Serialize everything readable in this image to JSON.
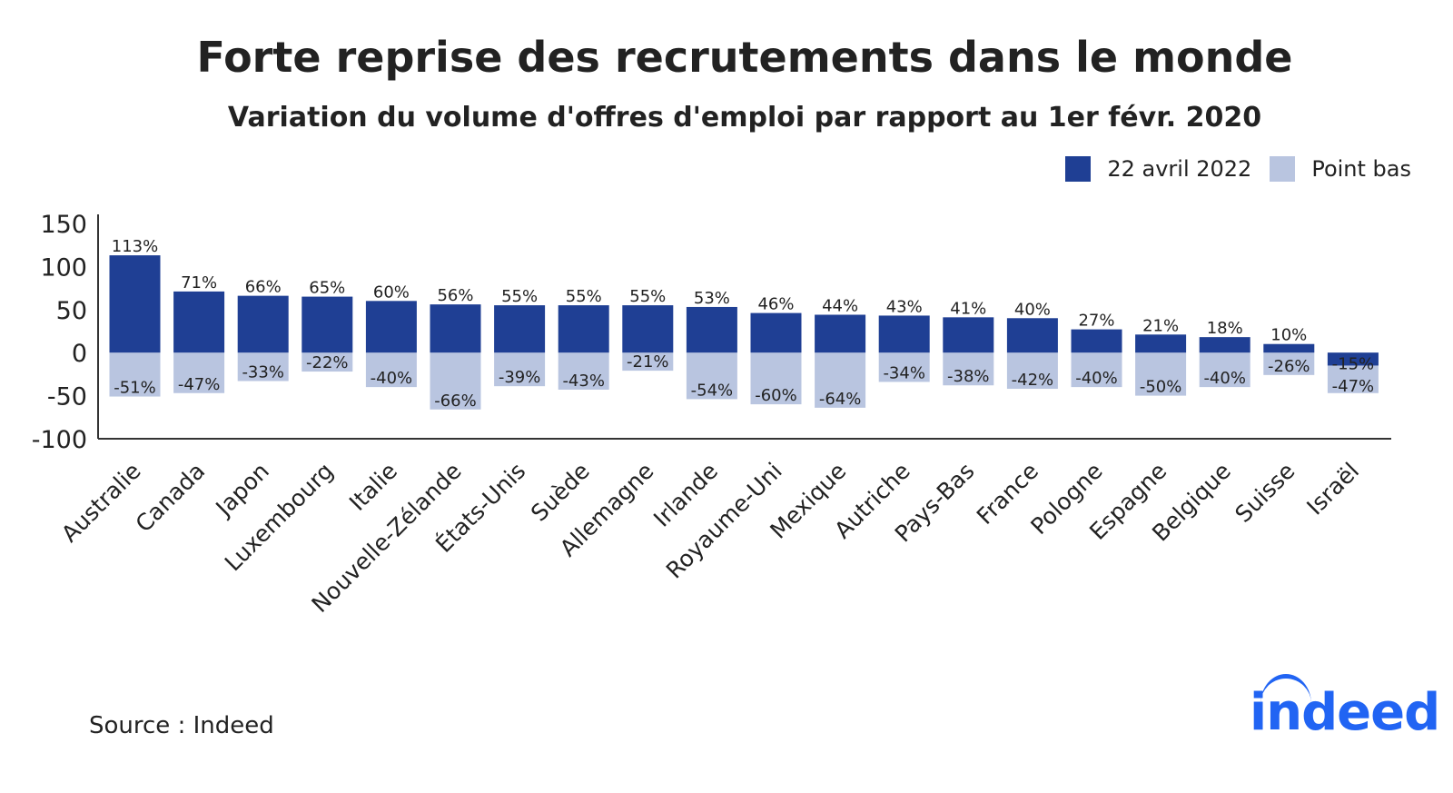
{
  "title": "Forte reprise des recrutements dans le monde",
  "subtitle": "Variation du volume d'offres d'emploi par rapport au 1er févr. 2020",
  "legend": {
    "current": "22 avril 2022",
    "low": "Point bas"
  },
  "source": "Source : Indeed",
  "logo": "indeed",
  "colors": {
    "current": "#1f3f94",
    "low": "#b9c5e0",
    "logo": "#2164f3"
  },
  "chart_data": {
    "type": "bar",
    "title": "Forte reprise des recrutements dans le monde",
    "subtitle": "Variation du volume d'offres d'emploi par rapport au 1er févr. 2020",
    "xlabel": "",
    "ylabel": "",
    "ylim": [
      -100,
      150
    ],
    "yticks": [
      150,
      100,
      50,
      0,
      -50,
      -100
    ],
    "grid": false,
    "legend_position": "top-right",
    "categories": [
      "Australie",
      "Canada",
      "Japon",
      "Luxembourg",
      "Italie",
      "Nouvelle-Zélande",
      "États-Unis",
      "Suède",
      "Allemagne",
      "Irlande",
      "Royaume-Uni",
      "Mexique",
      "Autriche",
      "Pays-Bas",
      "France",
      "Pologne",
      "Espagne",
      "Belgique",
      "Suisse",
      "Israël"
    ],
    "series": [
      {
        "name": "22 avril 2022",
        "values": [
          113,
          71,
          66,
          65,
          60,
          56,
          55,
          55,
          55,
          53,
          46,
          44,
          43,
          41,
          40,
          27,
          21,
          18,
          10,
          -15
        ],
        "labels": [
          "113%",
          "71%",
          "66%",
          "65%",
          "60%",
          "56%",
          "55%",
          "55%",
          "55%",
          "53%",
          "46%",
          "44%",
          "43%",
          "41%",
          "40%",
          "27%",
          "21%",
          "18%",
          "10%",
          "-15%"
        ]
      },
      {
        "name": "Point bas",
        "values": [
          -51,
          -47,
          -33,
          -22,
          -40,
          -66,
          -39,
          -43,
          -21,
          -54,
          -60,
          -64,
          -34,
          -38,
          -42,
          -40,
          -50,
          -40,
          -26,
          -47
        ],
        "labels": [
          "-51%",
          "-47%",
          "-33%",
          "-22%",
          "-40%",
          "-66%",
          "-39%",
          "-43%",
          "-21%",
          "-54%",
          "-60%",
          "-64%",
          "-34%",
          "-38%",
          "-42%",
          "-40%",
          "-50%",
          "-40%",
          "-26%",
          "-47%"
        ]
      }
    ]
  }
}
